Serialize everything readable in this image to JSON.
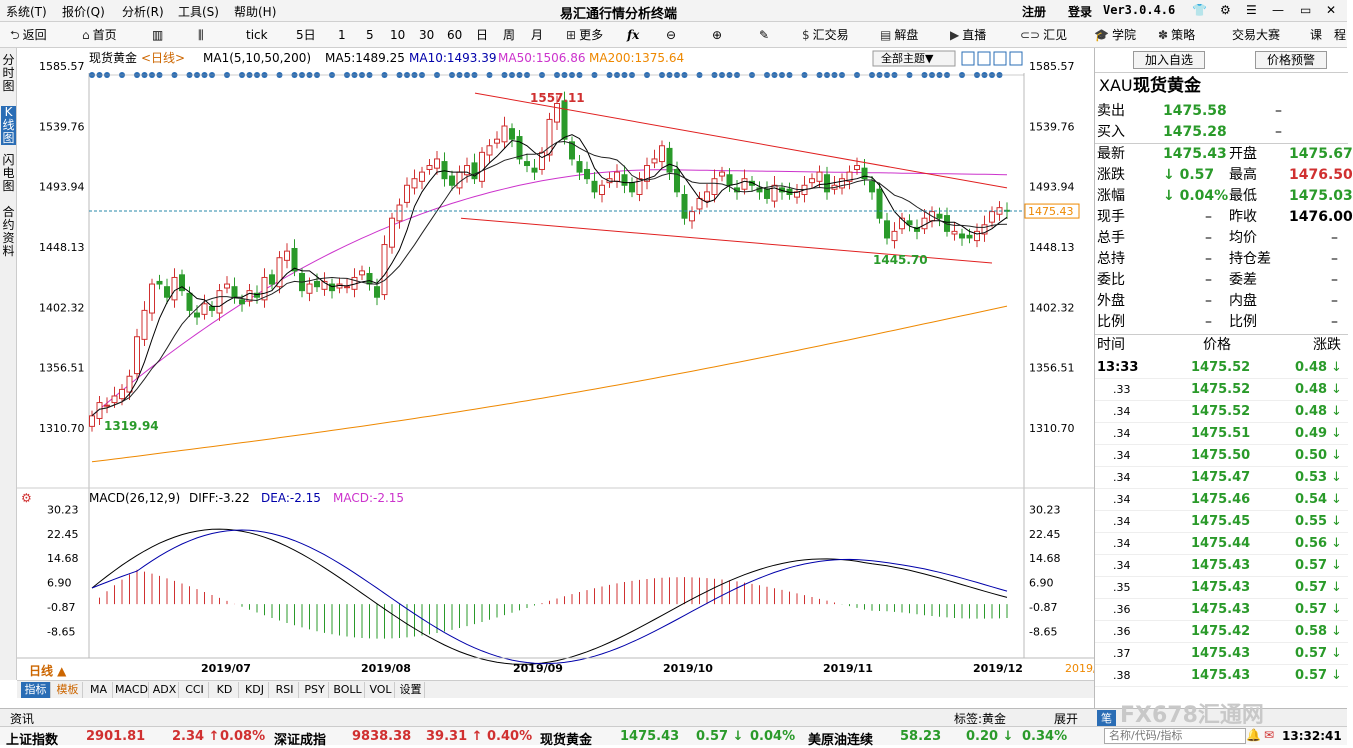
{
  "menubar": {
    "items": [
      "系统(T)",
      "报价(Q)",
      "分析(R)",
      "工具(S)",
      "帮助(H)"
    ],
    "title": "易汇通行情分析终端",
    "register": "注册",
    "login": "登录",
    "version": "Ver3.0.4.6"
  },
  "toolbar": {
    "back": "返回",
    "home": "首页",
    "tick": "tick",
    "periods": [
      "5日",
      "1",
      "5",
      "10",
      "30",
      "60",
      "日",
      "周",
      "月"
    ],
    "more": "更多",
    "trade": "汇交易",
    "analysis": "解盘",
    "live": "直播",
    "huijian": "汇见",
    "school": "学院",
    "strategy": "策略",
    "contest": "交易大赛",
    "course": "课",
    "course2": "程"
  },
  "leftbar": {
    "tabs": [
      "分时图",
      "K线图",
      "闪电图",
      "合约资料"
    ]
  },
  "chart_header": {
    "name": "现货黄金",
    "period": "<日线>",
    "ma_label": "MA1(5,10,50,200)",
    "ma5": "MA5:1489.25",
    "ma10": "MA10:1493.39",
    "ma50": "MA50:1506.86",
    "ma200": "MA200:1375.64",
    "theme": "全部主题▼"
  },
  "macd_header": {
    "label": "MACD(26,12,9)",
    "diff": "DIFF:-3.22",
    "dea": "DEA:-2.15",
    "macd": "MACD:-2.15"
  },
  "price_labels": [
    "1585.57",
    "1539.76",
    "1493.94",
    "1448.13",
    "1402.32",
    "1356.51",
    "1310.70"
  ],
  "macd_labels": [
    "30.23",
    "22.45",
    "14.68",
    "6.90",
    "-0.87",
    "-8.65"
  ],
  "annotations": {
    "high": "1557.11",
    "low_mid": "1445.70",
    "low_start": "1319.94",
    "current": "1475.43"
  },
  "date_labels": [
    "2019/07",
    "2019/08",
    "2019/09",
    "2019/10",
    "2019/11",
    "2019/12"
  ],
  "date_right": "2019/",
  "period_tab": "日线 ▲",
  "indicator_tabs": [
    "指标",
    "模板",
    "MA",
    "MACD",
    "ADX",
    "CCI",
    "KD",
    "KDJ",
    "RSI",
    "PSY",
    "BOLL",
    "VOL",
    "设置"
  ],
  "right_panel": {
    "add_watch": "加入自选",
    "price_alert": "价格预警",
    "code": "XAU",
    "name": "现货黄金",
    "sell_label": "卖出",
    "sell": "1475.58",
    "sell_dash": "–",
    "buy_label": "买入",
    "buy": "1475.28",
    "buy_dash": "–",
    "rows": [
      {
        "l1": "最新",
        "v1": "1475.43",
        "l2": "开盘",
        "v2": "1475.67"
      },
      {
        "l1": "涨跌",
        "v1": "↓ 0.57",
        "l2": "最高",
        "v2": "1476.50"
      },
      {
        "l1": "涨幅",
        "v1": "↓ 0.04%",
        "l2": "最低",
        "v2": "1475.03"
      },
      {
        "l1": "现手",
        "v1": "–",
        "l2": "昨收",
        "v2": "1476.00"
      },
      {
        "l1": "总手",
        "v1": "–",
        "l2": "均价",
        "v2": "–"
      },
      {
        "l1": "总持",
        "v1": "–",
        "l2": "持仓差",
        "v2": "–"
      },
      {
        "l1": "委比",
        "v1": "–",
        "l2": "委差",
        "v2": "–"
      },
      {
        "l1": "外盘",
        "v1": "–",
        "l2": "内盘",
        "v2": "–"
      },
      {
        "l1": "比例",
        "v1": "–",
        "l2": "比例",
        "v2": "–"
      }
    ],
    "ticks_header": {
      "time": "时间",
      "price": "价格",
      "change": "涨跌"
    },
    "ticks": [
      {
        "t": "13:33",
        "p": "1475.52",
        "c": "0.48"
      },
      {
        "t": ".33",
        "p": "1475.52",
        "c": "0.48"
      },
      {
        "t": ".34",
        "p": "1475.52",
        "c": "0.48"
      },
      {
        "t": ".34",
        "p": "1475.51",
        "c": "0.49"
      },
      {
        "t": ".34",
        "p": "1475.50",
        "c": "0.50"
      },
      {
        "t": ".34",
        "p": "1475.47",
        "c": "0.53"
      },
      {
        "t": ".34",
        "p": "1475.46",
        "c": "0.54"
      },
      {
        "t": ".34",
        "p": "1475.45",
        "c": "0.55"
      },
      {
        "t": ".34",
        "p": "1475.44",
        "c": "0.56"
      },
      {
        "t": ".34",
        "p": "1475.43",
        "c": "0.57"
      },
      {
        "t": ".35",
        "p": "1475.43",
        "c": "0.57"
      },
      {
        "t": ".36",
        "p": "1475.43",
        "c": "0.57"
      },
      {
        "t": ".36",
        "p": "1475.42",
        "c": "0.58"
      },
      {
        "t": ".37",
        "p": "1475.43",
        "c": "0.57"
      },
      {
        "t": ".38",
        "p": "1475.43",
        "c": "0.57"
      }
    ]
  },
  "bottom1": {
    "news": "资讯",
    "tag": "标签:黄金",
    "expand": "展开",
    "pen": "笔"
  },
  "bottom2": [
    {
      "name": "上证指数",
      "val": "2901.81",
      "chg": "2.34 ↑",
      "pct": "0.08%",
      "up": true
    },
    {
      "name": "深证成指",
      "val": "9838.38",
      "chg": "39.31 ↑",
      "pct": "0.40%",
      "up": true
    },
    {
      "name": "现货黄金",
      "val": "1475.43",
      "chg": "0.57 ↓",
      "pct": "0.04%",
      "up": false
    },
    {
      "name": "美原油连续",
      "val": "58.23",
      "chg": "0.20 ↓",
      "pct": "0.34%",
      "up": false
    }
  ],
  "search_placeholder": "名称/代码/指标",
  "clock": "13:32:41",
  "watermark": "FX678汇通网",
  "colors": {
    "up": "#d03030",
    "down": "#2a9a2a",
    "ma5": "#000000",
    "ma50": "#cc33cc",
    "ma200": "#ee8800",
    "trend": "#e02020"
  },
  "chart_data": {
    "type": "candlestick",
    "title": "现货黄金 <日线>",
    "ylim": [
      1290,
      1600
    ],
    "x_range": [
      "2019-06",
      "2019-12"
    ],
    "current_price": 1475.43,
    "high": 1557.11,
    "low": 1319.94,
    "closes": [
      1319.94,
      1330,
      1328,
      1335,
      1340,
      1350,
      1380,
      1400,
      1420,
      1420,
      1410,
      1425,
      1415,
      1400,
      1395,
      1405,
      1400,
      1415,
      1420,
      1410,
      1405,
      1415,
      1410,
      1425,
      1420,
      1440,
      1445,
      1430,
      1415,
      1420,
      1418,
      1422,
      1415,
      1420,
      1418,
      1425,
      1430,
      1420,
      1410,
      1450,
      1470,
      1480,
      1495,
      1500,
      1505,
      1510,
      1515,
      1500,
      1495,
      1505,
      1510,
      1500,
      1520,
      1525,
      1530,
      1540,
      1530,
      1515,
      1510,
      1505,
      1520,
      1545,
      1557.11,
      1530,
      1515,
      1505,
      1500,
      1490,
      1495,
      1500,
      1505,
      1495,
      1490,
      1500,
      1510,
      1515,
      1525,
      1505,
      1490,
      1470,
      1475,
      1485,
      1490,
      1500,
      1505,
      1495,
      1490,
      1500,
      1495,
      1490,
      1485,
      1495,
      1490,
      1488,
      1490,
      1495,
      1500,
      1505,
      1490,
      1495,
      1500,
      1505,
      1510,
      1500,
      1490,
      1470,
      1455,
      1460,
      1470,
      1465,
      1460,
      1470,
      1475,
      1470,
      1460,
      1460,
      1455,
      1455,
      1460,
      1465,
      1475,
      1478,
      1475.43
    ],
    "series": [
      {
        "name": "MA5",
        "value": 1489.25
      },
      {
        "name": "MA10",
        "value": 1493.39
      },
      {
        "name": "MA50",
        "value": 1506.86
      },
      {
        "name": "MA200",
        "value": 1375.64
      }
    ],
    "macd": {
      "diff": -3.22,
      "dea": -2.15,
      "macd": -2.15,
      "ylim": [
        -14,
        32
      ]
    }
  }
}
